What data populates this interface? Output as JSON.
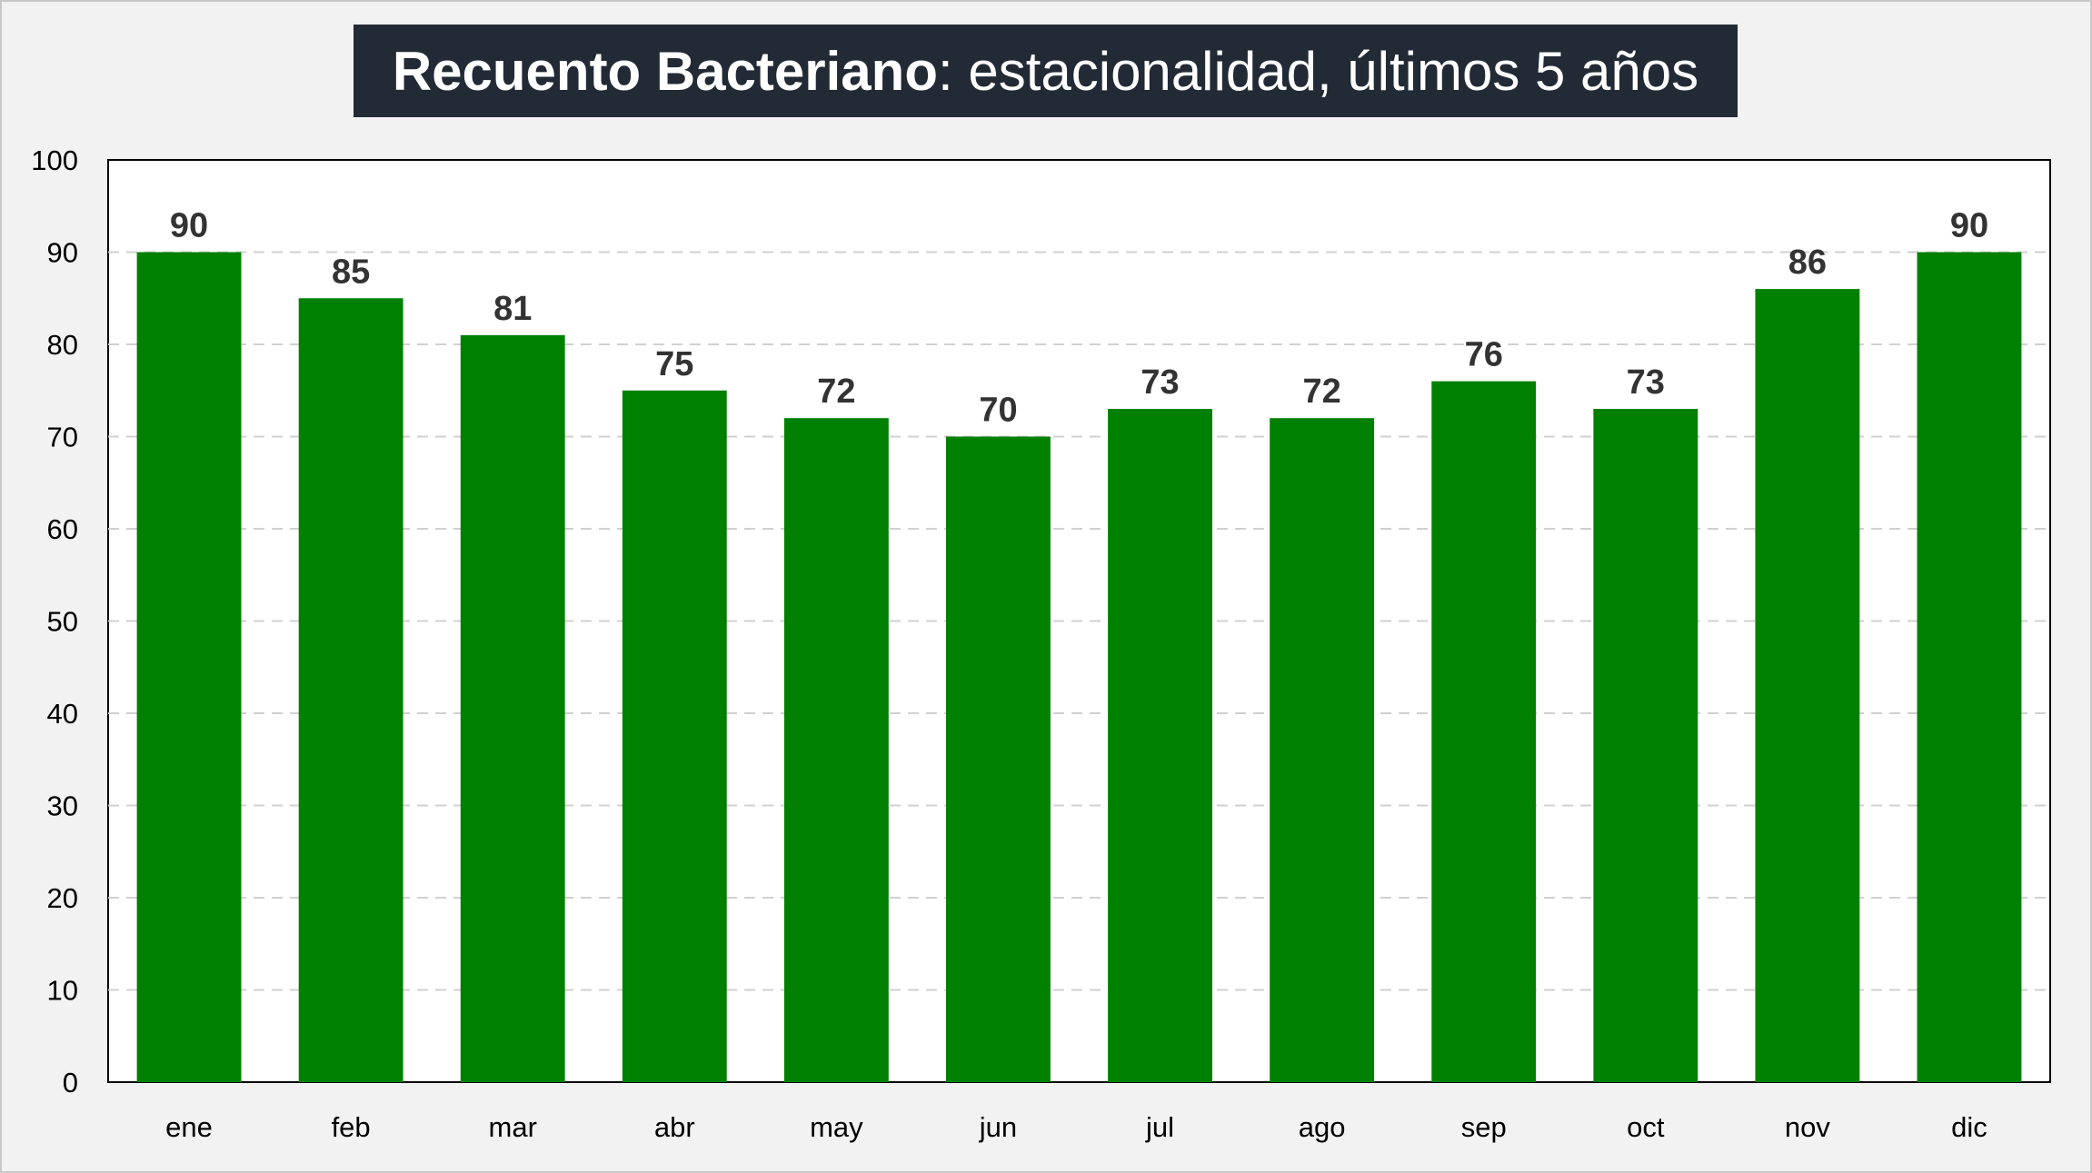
{
  "chart_data": {
    "type": "bar",
    "title_bold": "Recuento Bacteriano",
    "title_rest": ": estacionalidad, últimos 5 años",
    "categories": [
      "ene",
      "feb",
      "mar",
      "abr",
      "may",
      "jun",
      "jul",
      "ago",
      "sep",
      "oct",
      "nov",
      "dic"
    ],
    "values": [
      90,
      85,
      81,
      75,
      72,
      70,
      73,
      72,
      76,
      73,
      86,
      90
    ],
    "data_labels": [
      "90",
      "85",
      "81",
      "75",
      "72",
      "70",
      "73",
      "72",
      "76",
      "73",
      "86",
      "90"
    ],
    "ylim": [
      0,
      100
    ],
    "yticks": [
      "0",
      "10",
      "20",
      "30",
      "40",
      "50",
      "60",
      "70",
      "80",
      "90",
      "100"
    ],
    "grid": true,
    "colors": {
      "bar": "#008000",
      "title_bg": "#222a35",
      "background": "#f2f2f2",
      "plot_bg": "#ffffff"
    }
  }
}
